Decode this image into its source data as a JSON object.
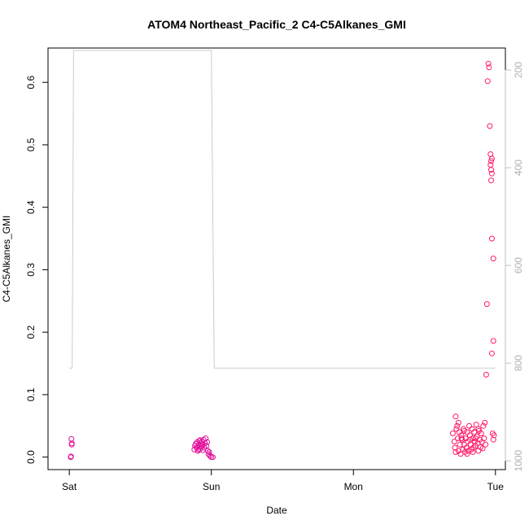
{
  "chart_data": {
    "type": "scatter",
    "title": "ATOM4 Northeast_Pacific_2 C4-C5Alkanes_GMI",
    "xlabel": "Date",
    "ylabel": "C4-C5Alkanes_GMI",
    "x_ticks": [
      {
        "pos": 0,
        "label": "Sat"
      },
      {
        "pos": 1,
        "label": "Sun"
      },
      {
        "pos": 2,
        "label": "Mon"
      },
      {
        "pos": 3,
        "label": "Tue"
      }
    ],
    "xlim": [
      -0.15,
      3.07
    ],
    "ylim": [
      -0.02,
      0.655
    ],
    "y_ticks": [
      0.0,
      0.1,
      0.2,
      0.3,
      0.4,
      0.5,
      0.6
    ],
    "y_tick_labels": [
      "0.0",
      "0.1",
      "0.2",
      "0.3",
      "0.4",
      "0.5",
      "0.6"
    ],
    "secondary_axis": {
      "ticks": [
        200,
        400,
        600,
        800,
        1000
      ],
      "tick_labels": [
        "200",
        "400",
        "600",
        "800",
        "1000"
      ],
      "range": [
        1018,
        155
      ],
      "color": "#c0c0c0"
    },
    "pressure_line": {
      "color": "#cccccc",
      "x": [
        0.0,
        0.02,
        0.03,
        1.0,
        1.02,
        1.03,
        1.04,
        1.05,
        1.06,
        1.07,
        1.08,
        1.09,
        1.1,
        1.11,
        1.12,
        1.13,
        1.14,
        1.15,
        1.16,
        1.17,
        1.18,
        1.19,
        1.2,
        1.21,
        1.22,
        1.23,
        1.24,
        1.25,
        1.26,
        1.27,
        1.28,
        1.29,
        1.3,
        1.31,
        1.32,
        1.33,
        1.34,
        1.35,
        1.36,
        1.37,
        1.38,
        1.39,
        1.4,
        1.41,
        1.42,
        1.43,
        1.44,
        1.45,
        1.46,
        1.47,
        1.48,
        1.49,
        1.5,
        1.51,
        1.52,
        1.53,
        1.54,
        1.55,
        1.56,
        1.57,
        1.58,
        1.59,
        1.6,
        1.61,
        1.62,
        1.63,
        1.64,
        1.65,
        1.66,
        1.67,
        1.68,
        1.69,
        1.7,
        1.71,
        1.72,
        1.73,
        1.74,
        1.75,
        1.76,
        1.77,
        1.78,
        1.79,
        1.8,
        1.81,
        1.82,
        1.83,
        1.84,
        1.85,
        1.86,
        1.87,
        1.88,
        1.89,
        1.9,
        1.91,
        1.92,
        1.93,
        1.94,
        1.95,
        1.96,
        1.97,
        1.98,
        1.99,
        2.0,
        2.7,
        2.72,
        2.74,
        2.76,
        2.78,
        2.8,
        2.82,
        2.84,
        2.86,
        2.88,
        2.9,
        2.92,
        2.94,
        2.96,
        2.98,
        3.0
      ],
      "p": [
        810,
        810,
        160,
        160,
        810,
        810,
        810,
        810,
        810,
        810,
        810,
        810,
        810,
        810,
        810,
        810,
        810,
        810,
        810,
        810,
        810,
        810,
        810,
        810,
        810,
        810,
        810,
        810,
        810,
        810,
        810,
        810,
        810,
        810,
        810,
        810,
        810,
        810,
        810,
        810,
        810,
        810,
        810,
        810,
        810,
        810,
        810,
        810,
        810,
        810,
        810,
        810,
        810,
        810,
        810,
        810,
        810,
        810,
        810,
        810,
        810,
        810,
        810,
        810,
        810,
        810,
        810,
        810,
        810,
        810,
        810,
        810,
        810,
        810,
        810,
        810,
        810,
        810,
        810,
        810,
        810,
        810,
        810,
        810,
        810,
        810,
        810,
        810,
        810,
        810,
        810,
        810,
        810,
        810,
        810,
        810,
        810,
        810,
        810,
        810,
        810,
        810,
        810,
        810,
        810,
        810,
        810,
        810,
        810,
        810,
        810,
        810,
        810,
        810,
        810,
        810,
        810,
        810,
        810,
        810
      ]
    },
    "series": [
      {
        "color": "#e0109b",
        "points": [
          [
            0.01,
            0.0
          ],
          [
            0.012,
            0.001
          ],
          [
            0.015,
            0.029
          ],
          [
            0.017,
            0.02
          ],
          [
            0.018,
            0.022
          ],
          [
            0.88,
            0.012
          ],
          [
            0.885,
            0.018
          ],
          [
            0.89,
            0.021
          ],
          [
            0.895,
            0.015
          ],
          [
            0.9,
            0.024
          ],
          [
            0.905,
            0.01
          ],
          [
            0.91,
            0.019
          ],
          [
            0.915,
            0.026
          ],
          [
            0.92,
            0.013
          ],
          [
            0.925,
            0.022
          ],
          [
            0.93,
            0.017
          ],
          [
            0.935,
            0.025
          ],
          [
            0.94,
            0.02
          ],
          [
            0.945,
            0.028
          ],
          [
            0.95,
            0.015
          ],
          [
            0.955,
            0.022
          ],
          [
            0.96,
            0.03
          ],
          [
            0.965,
            0.018
          ],
          [
            0.97,
            0.024
          ],
          [
            0.975,
            0.01
          ],
          [
            0.98,
            0.005
          ],
          [
            0.99,
            0.002
          ],
          [
            1.0,
            0.0
          ],
          [
            1.01,
            0.0
          ],
          [
            0.985,
            0.008
          ],
          [
            0.91,
            0.012
          ],
          [
            0.93,
            0.02
          ],
          [
            0.94,
            0.011
          ],
          [
            0.92,
            0.027
          ]
        ]
      },
      {
        "color": "#ff1a66",
        "points": [
          [
            2.7,
            0.038
          ],
          [
            2.71,
            0.025
          ],
          [
            2.715,
            0.015
          ],
          [
            2.72,
            0.065
          ],
          [
            2.725,
            0.045
          ],
          [
            2.73,
            0.05
          ],
          [
            2.735,
            0.03
          ],
          [
            2.74,
            0.01
          ],
          [
            2.745,
            0.04
          ],
          [
            2.75,
            0.02
          ],
          [
            2.755,
            0.005
          ],
          [
            2.76,
            0.035
          ],
          [
            2.765,
            0.028
          ],
          [
            2.77,
            0.012
          ],
          [
            2.775,
            0.045
          ],
          [
            2.78,
            0.02
          ],
          [
            2.785,
            0.008
          ],
          [
            2.79,
            0.03
          ],
          [
            2.795,
            0.015
          ],
          [
            2.8,
            0.04
          ],
          [
            2.805,
            0.025
          ],
          [
            2.81,
            0.01
          ],
          [
            2.815,
            0.05
          ],
          [
            2.82,
            0.035
          ],
          [
            2.825,
            0.02
          ],
          [
            2.83,
            0.012
          ],
          [
            2.835,
            0.045
          ],
          [
            2.84,
            0.03
          ],
          [
            2.845,
            0.015
          ],
          [
            2.85,
            0.04
          ],
          [
            2.855,
            0.025
          ],
          [
            2.86,
            0.018
          ],
          [
            2.865,
            0.052
          ],
          [
            2.87,
            0.033
          ],
          [
            2.875,
            0.022
          ],
          [
            2.88,
            0.01
          ],
          [
            2.885,
            0.042
          ],
          [
            2.89,
            0.028
          ],
          [
            2.895,
            0.016
          ],
          [
            2.9,
            0.038
          ],
          [
            2.905,
            0.024
          ],
          [
            2.91,
            0.014
          ],
          [
            2.915,
            0.05
          ],
          [
            2.92,
            0.03
          ],
          [
            2.925,
            0.055
          ],
          [
            2.93,
            0.02
          ],
          [
            2.935,
            0.132
          ],
          [
            2.94,
            0.245
          ],
          [
            2.945,
            0.602
          ],
          [
            2.95,
            0.63
          ],
          [
            2.955,
            0.624
          ],
          [
            2.96,
            0.53
          ],
          [
            2.965,
            0.485
          ],
          [
            2.97,
            0.474
          ],
          [
            2.975,
            0.478
          ],
          [
            2.965,
            0.468
          ],
          [
            2.97,
            0.46
          ],
          [
            2.975,
            0.454
          ],
          [
            2.97,
            0.443
          ],
          [
            2.975,
            0.35
          ],
          [
            2.985,
            0.318
          ],
          [
            2.985,
            0.186
          ],
          [
            2.975,
            0.166
          ],
          [
            2.98,
            0.038
          ],
          [
            2.985,
            0.028
          ],
          [
            2.99,
            0.035
          ],
          [
            2.72,
            0.008
          ],
          [
            2.74,
            0.055
          ],
          [
            2.76,
            0.03
          ],
          [
            2.78,
            0.042
          ],
          [
            2.8,
            0.005
          ],
          [
            2.82,
            0.028
          ],
          [
            2.84,
            0.008
          ],
          [
            2.86,
            0.03
          ],
          [
            2.88,
            0.045
          ]
        ]
      }
    ],
    "grid": false,
    "legend": "none"
  }
}
